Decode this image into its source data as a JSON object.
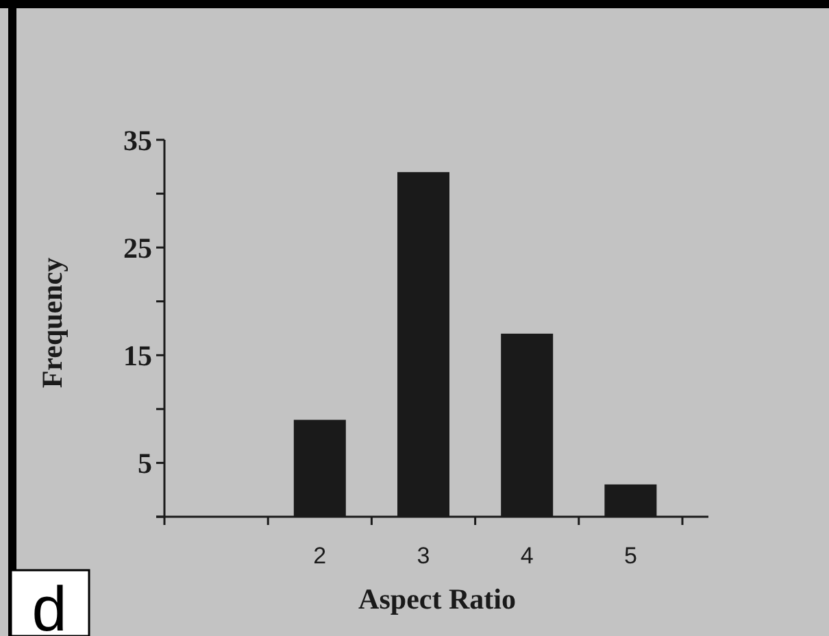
{
  "chart_data": {
    "type": "bar",
    "xlabel": "Aspect Ratio",
    "ylabel": "Frequency",
    "categories": [
      null,
      "2",
      "3",
      "4",
      "5"
    ],
    "values": [
      null,
      9,
      32,
      17,
      3
    ],
    "color": "#1a1a1a",
    "ylim": [
      0,
      35
    ],
    "yticks": [
      {
        "value": 0,
        "label": null
      },
      5,
      {
        "value": 10,
        "label": null
      },
      15,
      {
        "value": 20,
        "label": null
      },
      25,
      {
        "value": 30,
        "label": null
      },
      35
    ],
    "grid": false,
    "annotations": [
      "d"
    ]
  }
}
